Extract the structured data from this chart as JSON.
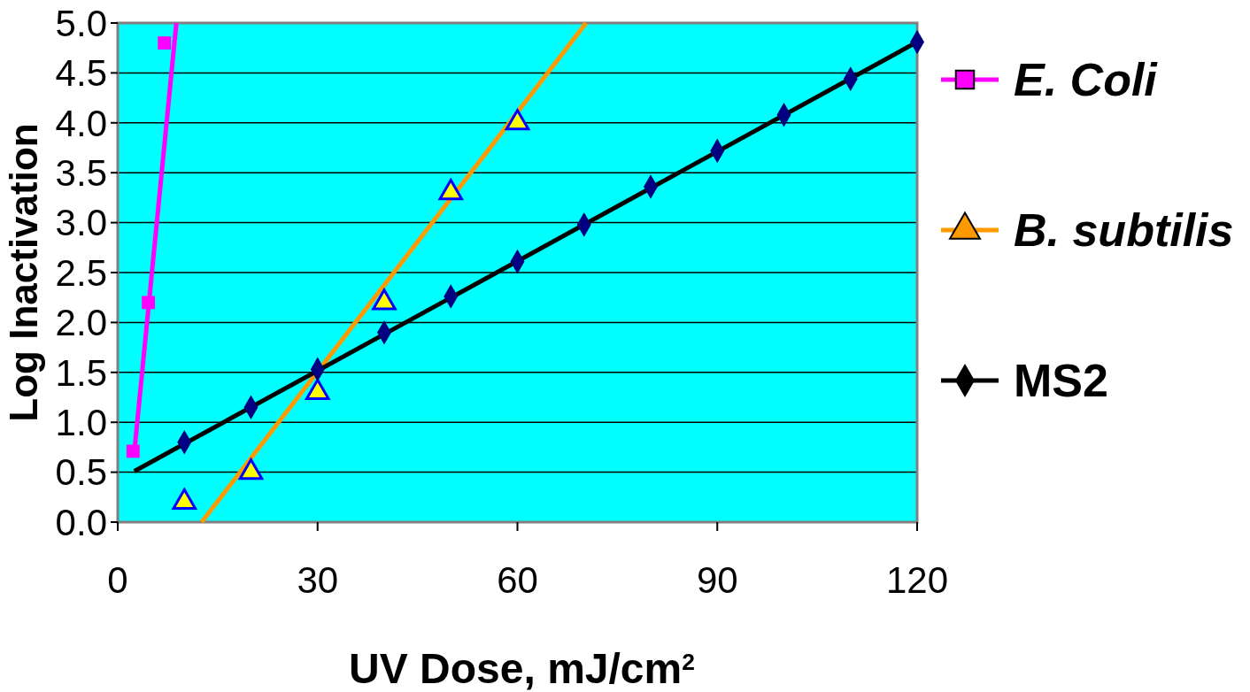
{
  "chart_data": {
    "type": "scatter",
    "xlabel": "UV Dose, mJ/cm$^{2}$",
    "ylabel": "Log Inactivation",
    "xlim": [
      0,
      120
    ],
    "xticks": [
      0,
      30,
      60,
      90,
      120
    ],
    "ylim": [
      0,
      5
    ],
    "yticks": [
      {
        "value": 0,
        "label": "0.0"
      },
      {
        "value": 0.5,
        "label": "0.5"
      },
      {
        "value": 1,
        "label": "1.0"
      },
      {
        "value": 1.5,
        "label": "1.5"
      },
      {
        "value": 2,
        "label": "2.0"
      },
      {
        "value": 2.5,
        "label": "2.5"
      },
      {
        "value": 3,
        "label": "3.0"
      },
      {
        "value": 3.5,
        "label": "3.5"
      },
      {
        "value": 4,
        "label": "4.0"
      },
      {
        "value": 4.5,
        "label": "4.5"
      },
      {
        "value": 5,
        "label": "5.0"
      }
    ],
    "grid": "y",
    "legend": "right",
    "series": [
      {
        "type": "line",
        "name": "E. Coli",
        "color": "#ff00ff",
        "x": [
          2.5,
          8.8
        ],
        "values": [
          0.71,
          5.0
        ]
      },
      {
        "color": "#ff00ff",
        "marker": "square",
        "x": [
          2.3,
          4.6,
          7
        ],
        "values": [
          0.71,
          2.2,
          4.8
        ]
      },
      {
        "type": "line",
        "name": "B. subtilis",
        "color": "#ff9900",
        "x": [
          12.6,
          70.3
        ],
        "values": [
          0,
          5.0
        ]
      },
      {
        "color": "#ffff00",
        "marker": "triangle",
        "x": [
          10,
          20,
          30,
          40,
          50,
          60
        ],
        "values": [
          0.2,
          0.5,
          1.3,
          2.2,
          3.3,
          4.0
        ]
      },
      {
        "type": "line",
        "name": "MS2",
        "color": "#000000",
        "x": [
          2.5,
          120
        ],
        "values": [
          0.51,
          4.81
        ]
      },
      {
        "color": "#000080",
        "marker": "diamond",
        "x": [
          10,
          20,
          30,
          40,
          50,
          60,
          70,
          80,
          90,
          100,
          110,
          120
        ],
        "values": [
          0.8,
          1.15,
          1.53,
          1.9,
          2.26,
          2.61,
          2.98,
          3.36,
          3.72,
          4.08,
          4.44,
          4.81
        ]
      }
    ]
  }
}
